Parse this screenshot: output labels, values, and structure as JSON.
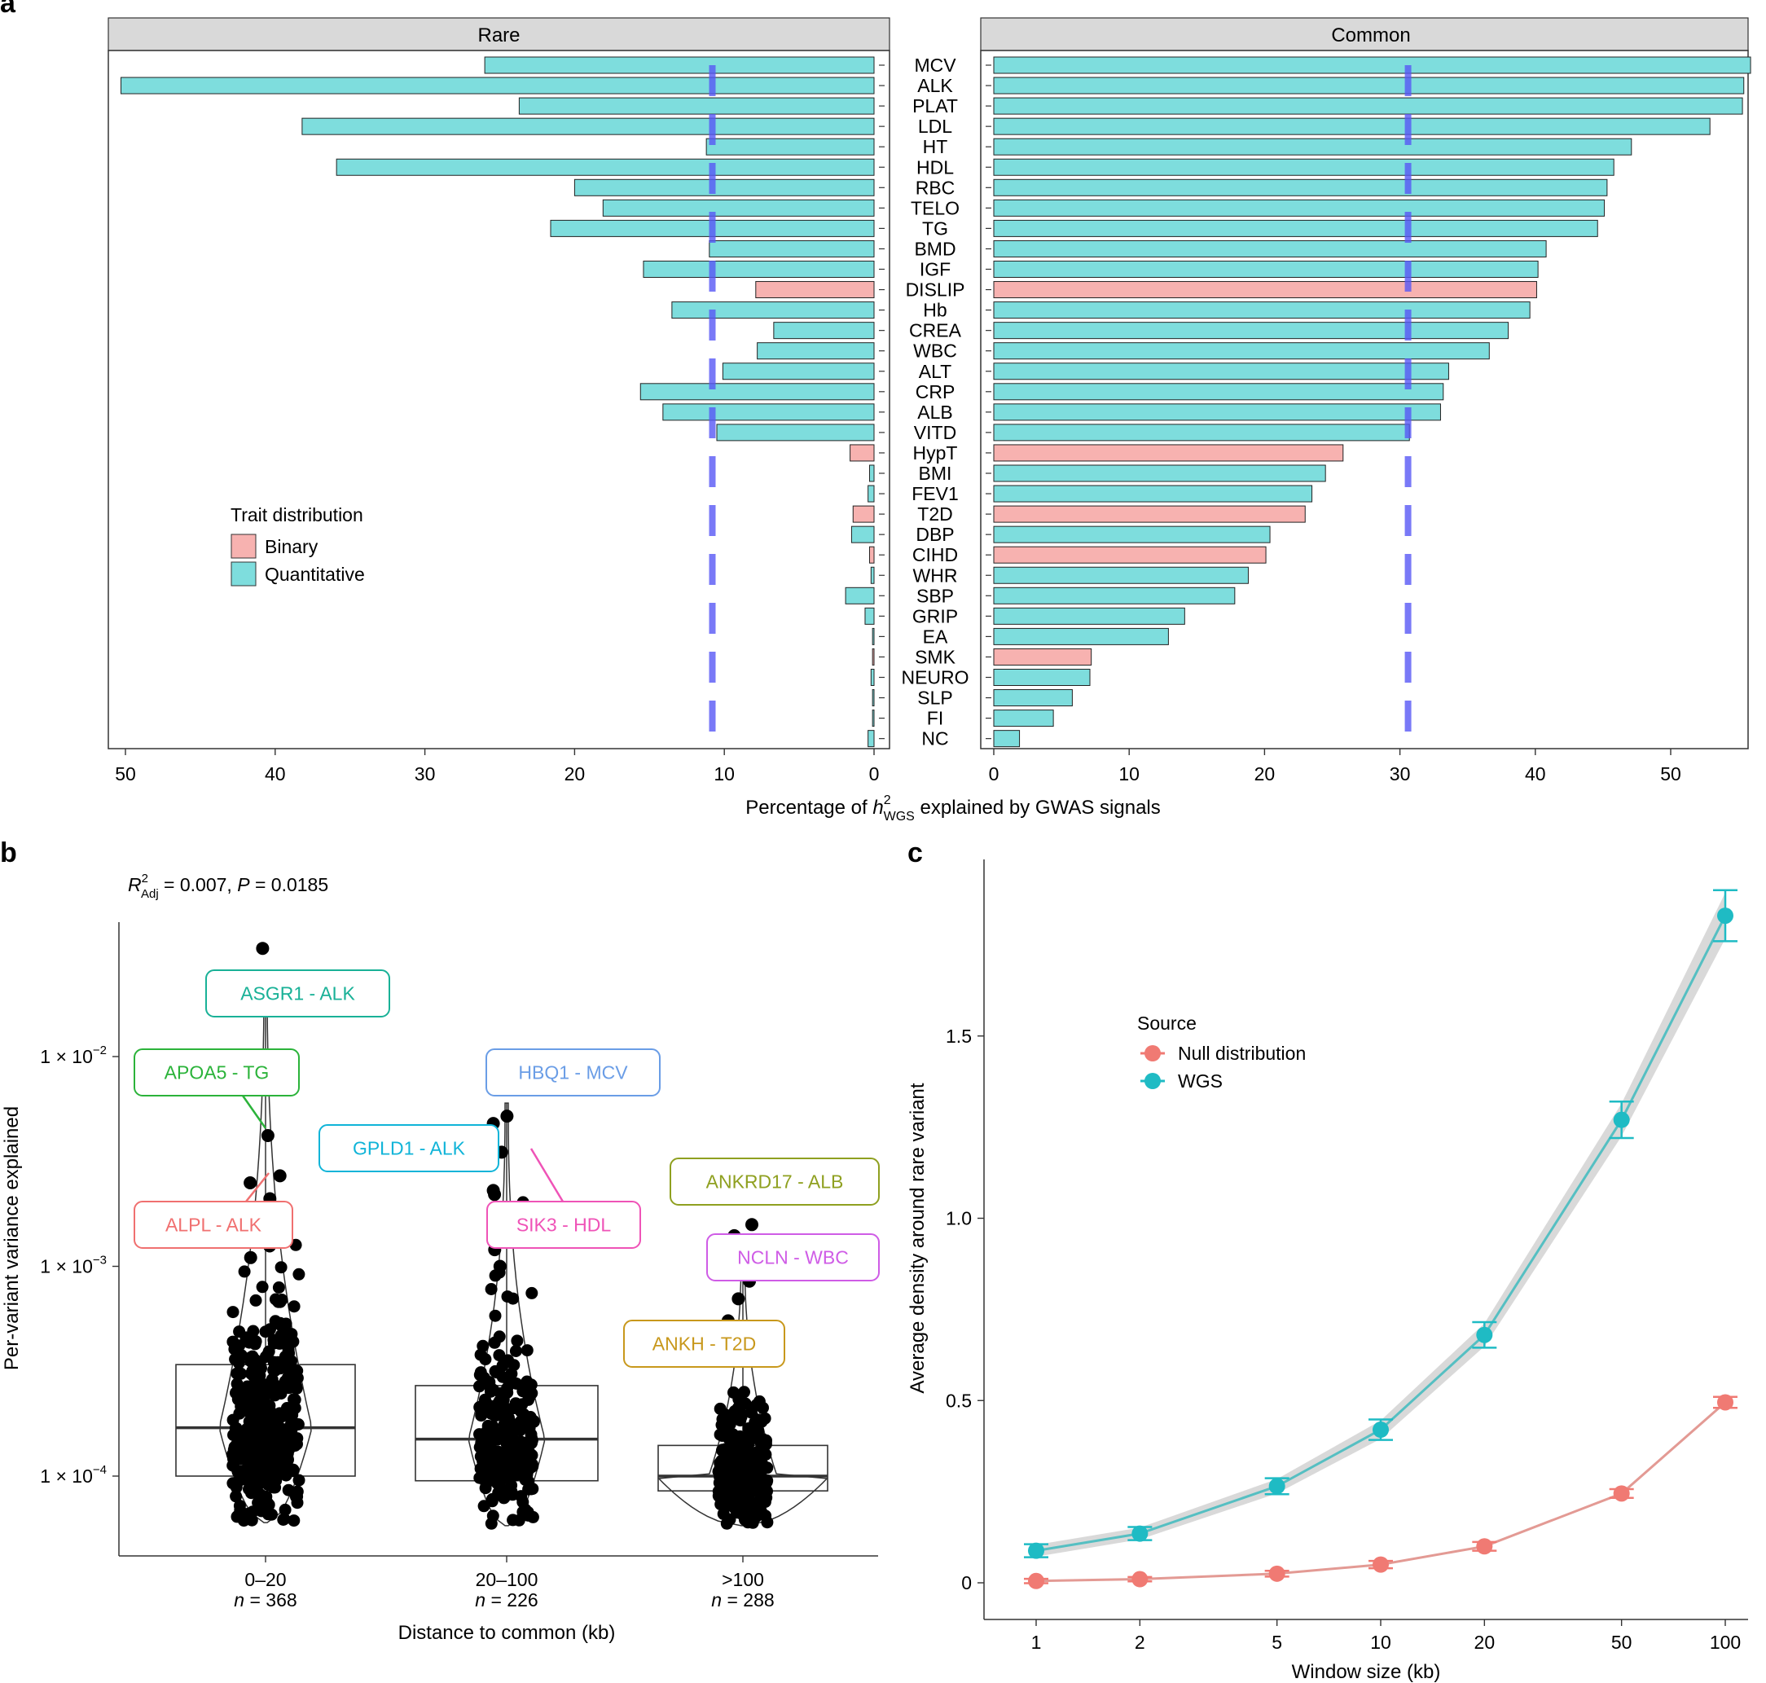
{
  "chart_data": [
    {
      "panel": "a",
      "type": "bar",
      "orientation": "horizontal",
      "xlabel": "Percentage of h²WGS explained by GWAS signals",
      "xlabel_parts": {
        "prefix": "Percentage of ",
        "h": "h",
        "sup": "2",
        "sub": "WGS",
        "suffix": " explained by GWAS signals"
      },
      "legend": {
        "title": "Trait distribution",
        "entries": [
          {
            "name": "Binary",
            "color": "#F7B2B0"
          },
          {
            "name": "Quantitative",
            "color": "#7EDDDD"
          }
        ],
        "position": "left"
      },
      "traits": [
        "MCV",
        "ALK",
        "PLAT",
        "LDL",
        "HT",
        "HDL",
        "RBC",
        "TELO",
        "TG",
        "BMD",
        "IGF",
        "DISLIP",
        "Hb",
        "CREA",
        "WBC",
        "ALT",
        "CRP",
        "ALB",
        "VITD",
        "HypT",
        "BMI",
        "FEV1",
        "T2D",
        "DBP",
        "CIHD",
        "WHR",
        "SBP",
        "GRIP",
        "EA",
        "SMK",
        "NEURO",
        "SLP",
        "FI",
        "NC"
      ],
      "binary": [
        "DISLIP",
        "HypT",
        "T2D",
        "CIHD",
        "SMK"
      ],
      "facets": [
        {
          "name": "Rare",
          "reversed": true,
          "xlim": [
            0,
            50.5
          ],
          "ticks": [
            50,
            40,
            30,
            20,
            10,
            0
          ],
          "mean": 10.8,
          "values": [
            26.0,
            50.3,
            23.7,
            38.2,
            11.2,
            35.9,
            20.0,
            18.1,
            21.6,
            11.0,
            15.4,
            7.9,
            13.5,
            6.7,
            7.8,
            10.1,
            15.6,
            14.1,
            10.5,
            1.6,
            0.3,
            0.4,
            1.4,
            1.5,
            0.3,
            0.2,
            1.9,
            0.6,
            0.1,
            0.1,
            0.2,
            0.1,
            0.1,
            0.4
          ]
        },
        {
          "name": "Common",
          "reversed": false,
          "xlim": [
            0,
            56
          ],
          "ticks": [
            0,
            10,
            20,
            30,
            40,
            50
          ],
          "mean": 30.6,
          "values": [
            55.9,
            55.4,
            55.3,
            52.9,
            47.1,
            45.8,
            45.3,
            45.1,
            44.6,
            40.8,
            40.2,
            40.1,
            39.6,
            38.0,
            36.6,
            33.6,
            33.2,
            33.0,
            30.7,
            25.8,
            24.5,
            23.5,
            23.0,
            20.4,
            20.1,
            18.8,
            17.8,
            14.1,
            12.9,
            7.2,
            7.1,
            5.8,
            4.4,
            1.9
          ]
        }
      ]
    },
    {
      "panel": "b",
      "type": "scatter",
      "subtype": "violin-box-jitter",
      "annotation": "R²Adj = 0.007, P = 0.0185",
      "annotation_parts": {
        "r": "R",
        "sup": "2",
        "sub": "Adj",
        "rest1": " = 0.007, ",
        "p": "P",
        "rest2": " = 0.0185"
      },
      "ylabel": "Per-variant variance explained",
      "xlabel": "Distance to common (kb)",
      "yscale": "log10",
      "ylim": [
        4e-05,
        0.04
      ],
      "yticks": [
        {
          "value": 0.0001,
          "base": "1 × 10",
          "exp": "−4"
        },
        {
          "value": 0.001,
          "base": "1 × 10",
          "exp": "−3"
        },
        {
          "value": 0.01,
          "base": "1 × 10",
          "exp": "−2"
        }
      ],
      "groups": [
        {
          "category": "0–20",
          "n_prefix": "n",
          "n": " = 368",
          "count": 368,
          "q1": 0.0001,
          "median": 0.00017,
          "q3": 0.00034,
          "max": 0.025,
          "min": 6e-05,
          "spread": 55,
          "outliers": [
            0.0328,
            0.0042,
            0.0027,
            0.0025,
            0.0021,
            0.0016,
            0.00125,
            0.0011
          ]
        },
        {
          "category": "20–100",
          "n_prefix": "n",
          "n": " = 226",
          "count": 226,
          "q1": 9.5e-05,
          "median": 0.00015,
          "q3": 0.00027,
          "max": 0.006,
          "min": 5.8e-05,
          "spread": 45,
          "outliers": [
            0.0052,
            0.0048,
            0.0035,
            0.0023,
            0.0022,
            0.0016,
            0.0012,
            0.001
          ]
        },
        {
          "category": ">100",
          "n_prefix": "n",
          "n": " = 288",
          "count": 288,
          "q1": 8.5e-05,
          "median": 0.0001,
          "q3": 0.00014,
          "max": 0.0013,
          "min": 5.8e-05,
          "spread": 40,
          "outliers": [
            0.00158,
            0.0014,
            0.00085,
            0.0007,
            0.00055
          ]
        }
      ],
      "labels": [
        {
          "text": "ASGR1 - ALK",
          "color": "#19B197"
        },
        {
          "text": "APOA5 - TG",
          "color": "#2BB33A"
        },
        {
          "text": "ALPL - ALK",
          "color": "#F07070"
        },
        {
          "text": "HBQ1 - MCV",
          "color": "#6A9DE6"
        },
        {
          "text": "GPLD1 - ALK",
          "color": "#10B4D8"
        },
        {
          "text": "SIK3 - HDL",
          "color": "#EF53B7"
        },
        {
          "text": "ANKRD17 - ALB",
          "color": "#8FA020"
        },
        {
          "text": "NCLN - WBC",
          "color": "#CF5CE6"
        },
        {
          "text": "ANKH - T2D",
          "color": "#C8981C"
        }
      ]
    },
    {
      "panel": "c",
      "type": "line",
      "xlabel": "Window size (kb)",
      "ylabel": "Average density around rare variant",
      "xscale": "log10",
      "x": [
        1,
        2,
        5,
        10,
        20,
        50,
        100
      ],
      "xticks": [
        1,
        2,
        5,
        10,
        20,
        50,
        100
      ],
      "ylim": [
        -0.07,
        1.98
      ],
      "yticks": [
        0,
        0.5,
        1.0,
        1.5
      ],
      "ytick_labels": [
        "0",
        "0.5",
        "1.0",
        "1.5"
      ],
      "legend": {
        "title": "Source",
        "position": "top-left"
      },
      "series": [
        {
          "name": "Null distribution",
          "color": "#F07A73",
          "line": "#E39A94",
          "values": [
            0.005,
            0.01,
            0.025,
            0.05,
            0.1,
            0.245,
            0.495
          ],
          "err": [
            0.006,
            0.006,
            0.008,
            0.01,
            0.012,
            0.012,
            0.015
          ]
        },
        {
          "name": "WGS",
          "color": "#1FBBC4",
          "line": "#55BFC2",
          "values": [
            0.088,
            0.135,
            0.265,
            0.42,
            0.68,
            1.27,
            1.83
          ],
          "err": [
            0.018,
            0.018,
            0.022,
            0.028,
            0.035,
            0.05,
            0.07
          ]
        }
      ]
    }
  ]
}
